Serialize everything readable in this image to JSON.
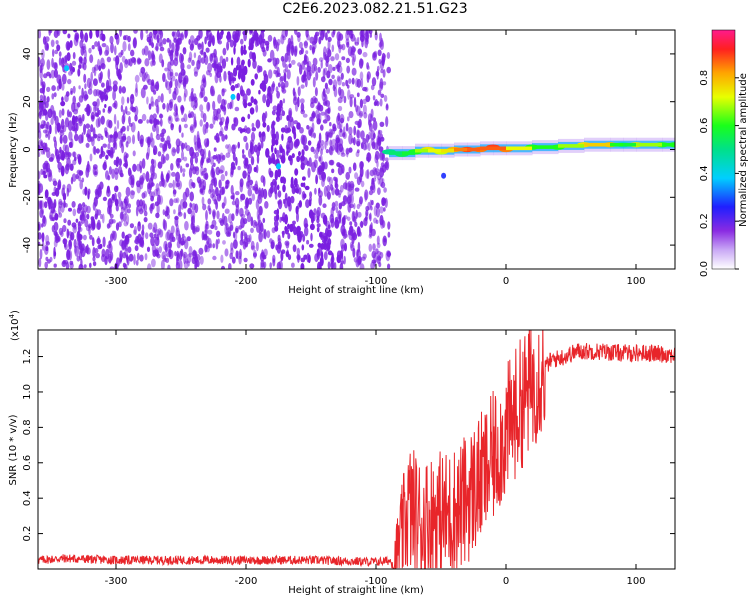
{
  "title": "C2E6.2023.082.21.51.G23",
  "colors": {
    "snr_line": "#e8252a",
    "spectrogram_background_cells": "#7a1fe0",
    "spectrogram_carrier": "#ff2a2a"
  },
  "chart_data": [
    {
      "type": "heatmap",
      "xlabel": "Height of straight line (km)",
      "ylabel": "Frequency (Hz)",
      "xlim": [
        -360,
        130
      ],
      "ylim": [
        -50,
        50
      ],
      "xticks": [
        -300,
        -200,
        -100,
        0,
        100
      ],
      "yticks": [
        -40,
        -20,
        0,
        20,
        40
      ],
      "colorbar": {
        "label": "Normalized spectral amplitude",
        "range": [
          0.0,
          1.0
        ],
        "ticks": [
          0.0,
          0.2,
          0.4,
          0.6,
          0.8
        ]
      },
      "regions": [
        {
          "x_range": [
            -360,
            -90
          ],
          "frequency_range": [
            -50,
            50
          ],
          "amplitude": 0.15,
          "description": "broadband noise"
        },
        {
          "x_range": [
            -90,
            130
          ],
          "frequency": 1,
          "amplitude": 0.8,
          "description": "carrier line"
        }
      ],
      "carrier_track": {
        "x": [
          -90,
          -80,
          -70,
          -60,
          -50,
          -40,
          -30,
          -20,
          -10,
          0,
          20,
          40,
          60,
          80,
          90,
          100,
          120,
          130
        ],
        "frequency": [
          -1,
          -2,
          -1,
          0,
          -1,
          0,
          0,
          0,
          1,
          0,
          1,
          1,
          2,
          2,
          2,
          2,
          2,
          2
        ],
        "amplitude": [
          0.5,
          0.55,
          0.6,
          0.75,
          0.7,
          0.8,
          0.9,
          0.85,
          0.9,
          0.85,
          0.6,
          0.6,
          0.75,
          0.8,
          0.4,
          0.75,
          0.6,
          0.6
        ]
      }
    },
    {
      "type": "line",
      "xlabel": "Height of straight line (km)",
      "ylabel": "SNR (10 * v/v)",
      "y_multiplier": "(x10",
      "y_multiplier_exp": "4",
      "y_multiplier_close": ")",
      "xlim": [
        -360,
        130
      ],
      "ylim": [
        0.0,
        1.35
      ],
      "xticks": [
        -300,
        -200,
        -100,
        0,
        100
      ],
      "yticks": [
        0.2,
        0.4,
        0.6,
        0.8,
        1.0,
        1.2
      ],
      "series": [
        {
          "x": [
            -360,
            -340,
            -300,
            -250,
            -200,
            -150,
            -100,
            -85,
            -75,
            -65,
            -55,
            -45,
            -35,
            -25,
            -15,
            -5,
            5,
            15,
            25,
            35,
            45,
            55,
            70,
            90,
            110,
            130
          ],
          "y": [
            0.05,
            0.06,
            0.05,
            0.05,
            0.05,
            0.05,
            0.04,
            0.05,
            0.35,
            0.25,
            0.3,
            0.3,
            0.35,
            0.45,
            0.55,
            0.7,
            0.85,
            0.98,
            1.1,
            1.18,
            1.2,
            1.23,
            1.23,
            1.22,
            1.22,
            1.21
          ]
        }
      ]
    }
  ]
}
